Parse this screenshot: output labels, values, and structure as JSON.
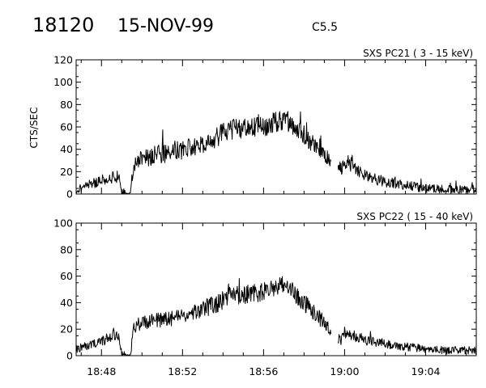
{
  "header": {
    "event_id": "18120",
    "date": "15-NOV-99",
    "flare_class": "C5.5"
  },
  "chart_data": [
    {
      "type": "line",
      "label": "SXS PC21  (  3 - 15 keV)",
      "ylabel": "CTS/SEC",
      "ylim": [
        0,
        120
      ],
      "yticks": [
        0,
        20,
        40,
        60,
        80,
        100,
        120
      ],
      "xlim": [
        "18:46:45",
        "19:06:30"
      ],
      "xticks": [
        "18:48",
        "18:52",
        "18:56",
        "19:00",
        "19:04"
      ],
      "profile_x": [
        "18:46:45",
        "18:47:10",
        "18:47:40",
        "18:48:10",
        "18:48:35",
        "18:48:50",
        "18:49:00",
        "18:49:15",
        "18:49:25",
        "18:49:35",
        "18:49:50",
        "18:50:30",
        "18:51:30",
        "18:52:30",
        "18:53:30",
        "18:54:00",
        "18:54:30",
        "18:55:00",
        "18:55:30",
        "18:56:00",
        "18:56:30",
        "18:57:00",
        "18:57:30",
        "18:58:00",
        "18:58:30",
        "18:59:00",
        "18:59:10",
        "18:59:30",
        "18:59:50",
        "19:00:00",
        "19:00:15",
        "19:00:30",
        "19:01:00",
        "19:02:00",
        "19:03:00",
        "19:04:00",
        "19:05:00",
        "19:06:30"
      ],
      "profile_y": [
        3,
        7,
        10,
        13,
        15,
        16,
        3,
        0,
        0,
        25,
        30,
        34,
        38,
        42,
        48,
        55,
        58,
        58,
        60,
        60,
        64,
        66,
        60,
        52,
        44,
        38,
        34,
        26,
        22,
        28,
        27,
        24,
        16,
        11,
        8,
        5,
        4,
        4
      ],
      "gap": [
        "18:59:20",
        "18:59:40"
      ],
      "noise_amplitude": 9,
      "noise_seed": 21
    },
    {
      "type": "line",
      "label": "SXS PC22  ( 15 - 40 keV)",
      "ylabel": "",
      "ylim": [
        0,
        100
      ],
      "yticks": [
        0,
        20,
        40,
        60,
        80,
        100
      ],
      "xlim": [
        "18:46:45",
        "19:06:30"
      ],
      "xticks": [
        "18:48",
        "18:52",
        "18:56",
        "19:00",
        "19:04"
      ],
      "profile_x": [
        "18:46:45",
        "18:47:10",
        "18:47:40",
        "18:48:10",
        "18:48:35",
        "18:48:50",
        "18:49:00",
        "18:49:15",
        "18:49:25",
        "18:49:35",
        "18:49:50",
        "18:50:30",
        "18:51:30",
        "18:52:30",
        "18:53:30",
        "18:54:00",
        "18:54:30",
        "18:55:00",
        "18:55:30",
        "18:56:00",
        "18:56:30",
        "18:57:00",
        "18:57:30",
        "18:58:00",
        "18:58:30",
        "18:59:00",
        "18:59:10",
        "18:59:30",
        "18:59:50",
        "19:00:00",
        "19:00:15",
        "19:00:30",
        "19:01:00",
        "19:02:00",
        "19:03:00",
        "19:04:00",
        "19:05:00",
        "19:06:30"
      ],
      "profile_y": [
        5,
        7,
        9,
        12,
        15,
        16,
        3,
        0,
        0,
        20,
        24,
        26,
        28,
        32,
        38,
        42,
        45,
        46,
        47,
        48,
        52,
        55,
        48,
        40,
        32,
        25,
        22,
        15,
        12,
        17,
        16,
        15,
        12,
        9,
        7,
        5,
        4,
        4
      ],
      "gap": [
        "18:59:20",
        "18:59:40"
      ],
      "noise_amplitude": 7,
      "noise_seed": 22
    }
  ]
}
